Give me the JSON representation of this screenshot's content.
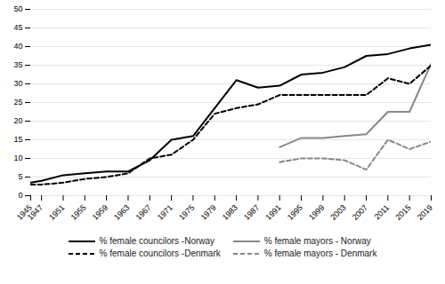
{
  "chart_data": {
    "type": "line",
    "x": [
      1945,
      1947,
      1951,
      1955,
      1959,
      1963,
      1967,
      1971,
      1975,
      1979,
      1983,
      1987,
      1991,
      1995,
      1999,
      2003,
      2007,
      2011,
      2015,
      2019
    ],
    "series": [
      {
        "name": "% female councilors -Norway",
        "color": "#000000",
        "line_style": "solid",
        "values": [
          3.5,
          4.0,
          5.5,
          6.0,
          6.5,
          6.5,
          9.5,
          15.0,
          16.0,
          23.5,
          31.0,
          29.0,
          29.5,
          32.5,
          33.0,
          34.5,
          37.5,
          38.0,
          39.5,
          40.5
        ]
      },
      {
        "name": "% female mayors - Norway",
        "color": "#888888",
        "line_style": "solid",
        "values": [
          null,
          null,
          null,
          null,
          null,
          null,
          null,
          null,
          null,
          null,
          null,
          null,
          13.0,
          15.5,
          15.5,
          16.0,
          16.5,
          22.5,
          22.5,
          35.5
        ]
      },
      {
        "name": "% female councilors -Denmark",
        "color": "#000000",
        "line_style": "dashed",
        "values": [
          3.0,
          3.0,
          3.5,
          4.5,
          5.0,
          6.0,
          10.0,
          11.0,
          15.0,
          22.0,
          23.5,
          24.5,
          27.0,
          27.0,
          27.0,
          27.0,
          27.0,
          31.5,
          30.0,
          35.0
        ]
      },
      {
        "name": "% female mayors - Denmark",
        "color": "#888888",
        "line_style": "dashed",
        "values": [
          null,
          null,
          null,
          null,
          null,
          null,
          null,
          null,
          null,
          null,
          null,
          null,
          9.0,
          10.0,
          10.0,
          9.5,
          7.0,
          15.0,
          12.5,
          14.5
        ]
      }
    ],
    "xlim": [
      1945,
      2019
    ],
    "xticks": [
      1945,
      1947,
      1951,
      1955,
      1959,
      1963,
      1967,
      1971,
      1975,
      1979,
      1983,
      1987,
      1991,
      1995,
      1999,
      2003,
      2007,
      2011,
      2015,
      2019
    ],
    "ylim": [
      0,
      50
    ],
    "yticks": [
      0,
      5,
      10,
      15,
      20,
      25,
      30,
      35,
      40,
      45,
      50
    ],
    "grid": true,
    "legend": "bottom"
  }
}
